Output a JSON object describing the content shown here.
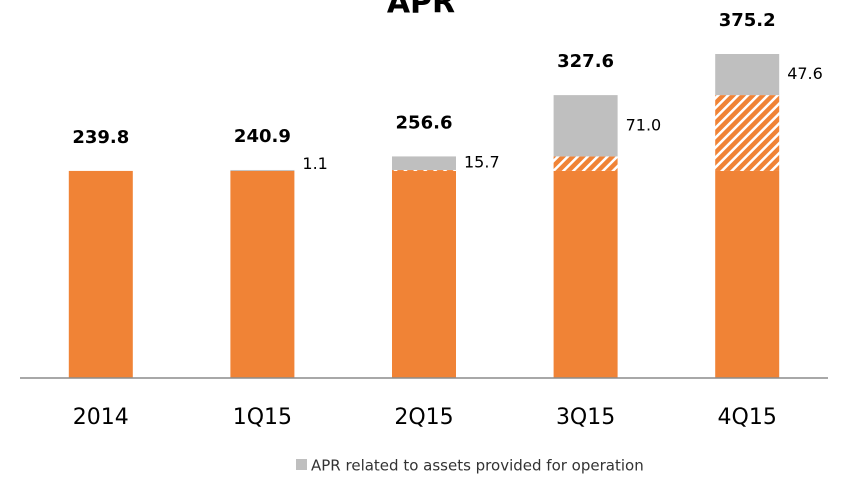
{
  "chart_data": {
    "type": "stacked_bar",
    "title": "APR",
    "categories": [
      "2014",
      "1Q15",
      "2Q15",
      "3Q15",
      "4Q15"
    ],
    "series": [
      {
        "color": "#F08336",
        "values": [
          239.8,
          239.8,
          239.8,
          239.8,
          239.8
        ]
      },
      {
        "color": "#F08336",
        "hatched": true,
        "values": [
          null,
          null,
          1.1,
          16.8,
          87.8
        ]
      },
      {
        "name": "APR related to assets provided for operation",
        "color": "#BFBFBF",
        "values": [
          null,
          1.1,
          15.7,
          71.0,
          47.6
        ],
        "value_labels": [
          null,
          "1.1",
          "15.7",
          "71.0",
          "47.6"
        ]
      }
    ],
    "totals": [
      239.8,
      240.9,
      256.6,
      327.6,
      375.2
    ],
    "legend": "bottom"
  }
}
